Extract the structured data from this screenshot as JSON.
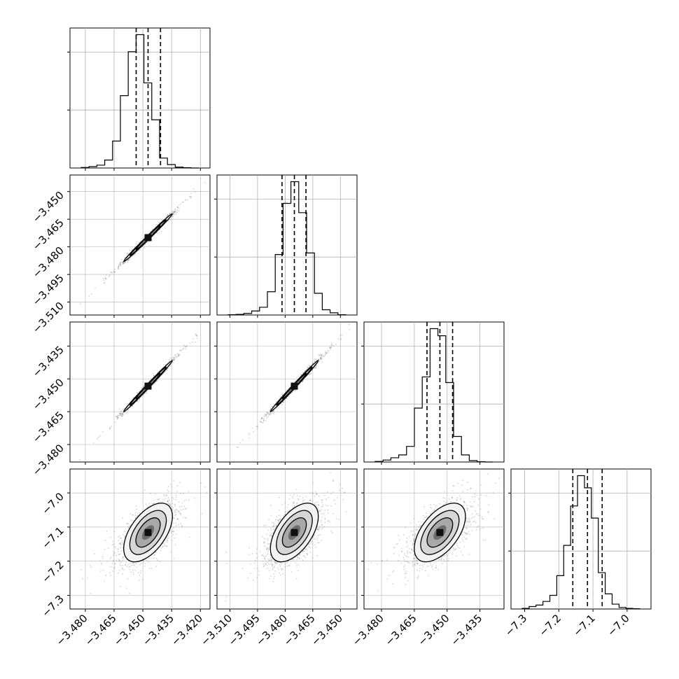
{
  "chart_data": {
    "type": "corner",
    "n_params": 4,
    "parameters": [
      {
        "index": 0,
        "range": [
          -3.488,
          -3.415
        ],
        "ticks": [
          -3.48,
          -3.465,
          -3.45,
          -3.435,
          -3.42
        ],
        "tick_labels": [
          "−3.480",
          "−3.465",
          "−3.450",
          "−3.435",
          "−3.420"
        ],
        "quantiles": [
          -3.4535,
          -3.4473,
          -3.4408
        ],
        "hist_counts": [
          2,
          5,
          10,
          28,
          95,
          255,
          410,
          470,
          300,
          170,
          35,
          12,
          3,
          1,
          0
        ]
      },
      {
        "index": 1,
        "range": [
          -3.517,
          -3.441
        ],
        "ticks": [
          -3.51,
          -3.495,
          -3.48,
          -3.465,
          -3.45
        ],
        "tick_labels": [
          "−3.510",
          "−3.495",
          "−3.480",
          "−3.465",
          "−3.450"
        ],
        "quantiles": [
          -3.4817,
          -3.475,
          -3.4687
        ],
        "hist_counts": [
          1,
          2,
          5,
          13,
          25,
          75,
          195,
          360,
          430,
          330,
          200,
          70,
          17,
          7,
          1
        ]
      },
      {
        "index": 2,
        "range": [
          -3.488,
          -3.424
        ],
        "ticks": [
          -3.48,
          -3.465,
          -3.45,
          -3.435
        ],
        "tick_labels": [
          "−3.480",
          "−3.465",
          "−3.450",
          "−3.435"
        ],
        "quantiles": [
          -3.4592,
          -3.4533,
          -3.4475
        ],
        "hist_counts": [
          2,
          7,
          15,
          25,
          55,
          190,
          300,
          470,
          445,
          280,
          90,
          25,
          5,
          1,
          0
        ]
      },
      {
        "index": 3,
        "range": [
          -7.34,
          -6.93
        ],
        "ticks": [
          -7.3,
          -7.2,
          -7.1,
          -7.0
        ],
        "tick_labels": [
          "−7.3",
          "−7.2",
          "−7.1",
          "−7.0"
        ],
        "quantiles": [
          -7.159,
          -7.116,
          -7.073
        ],
        "hist_counts": [
          2,
          8,
          13,
          25,
          45,
          110,
          210,
          340,
          440,
          400,
          300,
          120,
          50,
          16,
          5,
          2,
          1
        ]
      }
    ],
    "pairs": [
      {
        "row": 1,
        "col": 0,
        "type": "scatter-contour",
        "corr": 0.995
      },
      {
        "row": 2,
        "col": 0,
        "type": "scatter-contour",
        "corr": 0.995
      },
      {
        "row": 2,
        "col": 1,
        "type": "scatter-contour",
        "corr": 0.995
      },
      {
        "row": 3,
        "col": 0,
        "type": "scatter-contour",
        "corr": 0.55
      },
      {
        "row": 3,
        "col": 1,
        "type": "scatter-contour",
        "corr": 0.55
      },
      {
        "row": 3,
        "col": 2,
        "type": "scatter-contour",
        "corr": 0.55
      }
    ],
    "diag_y_ticks": 2,
    "grid": true,
    "colors": {
      "line": "#000000",
      "grid": "#b0b0b0",
      "points": "#808080"
    }
  }
}
